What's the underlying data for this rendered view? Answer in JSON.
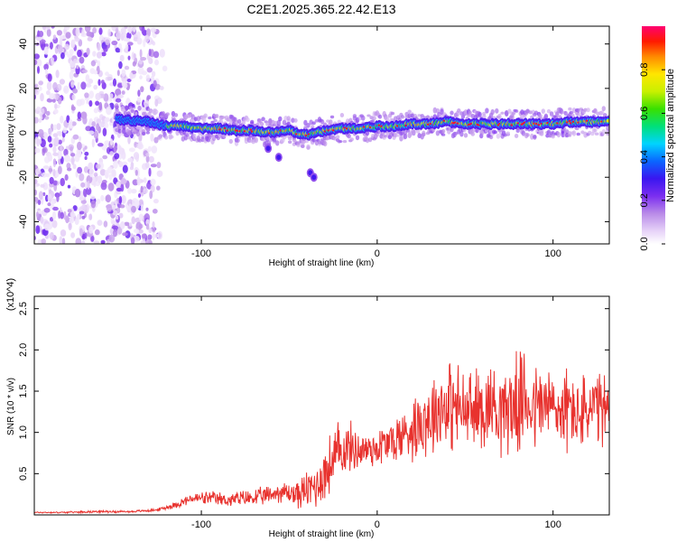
{
  "colors": {
    "snr_line": "#e8322e",
    "frame": "#000000",
    "background": "#ffffff",
    "colormap": [
      "#ffffff",
      "#e6d2f8",
      "#b98ae8",
      "#7b2ef0",
      "#3a16f0",
      "#0a66ff",
      "#00d4ff",
      "#00e07a",
      "#39e000",
      "#c9f000",
      "#ffe600",
      "#ff8a00",
      "#ff1a00",
      "#ff0070"
    ]
  },
  "chart_data": [
    {
      "type": "heatmap",
      "title": "C2E1.2025.365.22.42.E13",
      "xlabel": "Height of straight line (km)",
      "ylabel": "Frequency (Hz)",
      "xlim": [
        -195,
        132
      ],
      "ylim": [
        -50,
        48
      ],
      "xticks": [
        -100,
        0,
        100
      ],
      "yticks": [
        -40,
        -20,
        0,
        20,
        40
      ],
      "colorbar": {
        "label": "Normalized spectral amplitude",
        "range": [
          0,
          1
        ],
        "ticks": [
          "0.0",
          "0.2",
          "0.4",
          "0.6",
          "0.8"
        ],
        "tick_values": [
          0,
          0.2,
          0.4,
          0.6,
          0.8
        ]
      },
      "features": {
        "noise_region_x": [
          -195,
          -120
        ],
        "ridge_points": [
          [
            -148,
            6
          ],
          [
            -130,
            5
          ],
          [
            -120,
            3
          ],
          [
            -110,
            3
          ],
          [
            -100,
            2
          ],
          [
            -90,
            2
          ],
          [
            -80,
            1
          ],
          [
            -70,
            1
          ],
          [
            -60,
            0
          ],
          [
            -50,
            1
          ],
          [
            -40,
            -1
          ],
          [
            -30,
            1
          ],
          [
            -20,
            2
          ],
          [
            -10,
            2
          ],
          [
            0,
            3
          ],
          [
            10,
            3
          ],
          [
            20,
            4
          ],
          [
            30,
            4
          ],
          [
            40,
            5
          ],
          [
            50,
            4
          ],
          [
            60,
            4
          ],
          [
            70,
            4
          ],
          [
            80,
            4
          ],
          [
            90,
            4
          ],
          [
            100,
            4
          ],
          [
            110,
            5
          ],
          [
            120,
            5
          ],
          [
            132,
            5
          ]
        ],
        "secondary_blobs": [
          [
            -62,
            -7
          ],
          [
            -56,
            -11
          ],
          [
            -38,
            -18
          ],
          [
            -36,
            -20
          ]
        ]
      }
    },
    {
      "type": "line",
      "xlabel": "Height of straight line (km)",
      "ylabel": "SNR (10 * v/v)",
      "y_multiplier_label": "(x10^4)",
      "xlim": [
        -195,
        132
      ],
      "ylim": [
        0,
        2.65
      ],
      "xticks": [
        -100,
        0,
        100
      ],
      "yticks": [
        0.5,
        1.0,
        1.5,
        2.0,
        2.5
      ],
      "ytick_labels": [
        "0.5",
        "1.0",
        "1.5",
        "2.0",
        "2.5"
      ],
      "series": [
        {
          "name": "SNR",
          "x": [
            -195,
            -180,
            -160,
            -140,
            -125,
            -115,
            -105,
            -95,
            -85,
            -75,
            -65,
            -55,
            -45,
            -35,
            -30,
            -25,
            -20,
            -15,
            -10,
            -5,
            0,
            10,
            20,
            25,
            30,
            35,
            40,
            45,
            50,
            55,
            60,
            65,
            70,
            75,
            80,
            85,
            90,
            95,
            100,
            105,
            110,
            115,
            120,
            125,
            132
          ],
          "values": [
            0.03,
            0.03,
            0.04,
            0.04,
            0.06,
            0.12,
            0.2,
            0.2,
            0.18,
            0.2,
            0.22,
            0.28,
            0.25,
            0.35,
            0.5,
            0.65,
            0.8,
            0.82,
            0.78,
            0.8,
            0.82,
            0.9,
            1.05,
            1.15,
            1.2,
            1.3,
            1.35,
            1.3,
            1.25,
            1.25,
            1.3,
            1.35,
            1.3,
            1.3,
            1.35,
            1.4,
            1.3,
            1.35,
            1.3,
            1.25,
            1.3,
            1.2,
            1.25,
            1.3,
            1.2
          ],
          "noise_amplitude": [
            0.01,
            0.01,
            0.015,
            0.015,
            0.02,
            0.05,
            0.08,
            0.1,
            0.1,
            0.12,
            0.13,
            0.15,
            0.2,
            0.35,
            0.4,
            0.5,
            0.45,
            0.35,
            0.3,
            0.28,
            0.3,
            0.35,
            0.45,
            0.55,
            0.6,
            0.6,
            0.65,
            0.65,
            0.6,
            0.6,
            0.6,
            0.62,
            0.65,
            0.65,
            0.7,
            0.7,
            0.65,
            0.62,
            0.6,
            0.6,
            0.6,
            0.55,
            0.55,
            0.55,
            0.55
          ]
        }
      ]
    }
  ]
}
